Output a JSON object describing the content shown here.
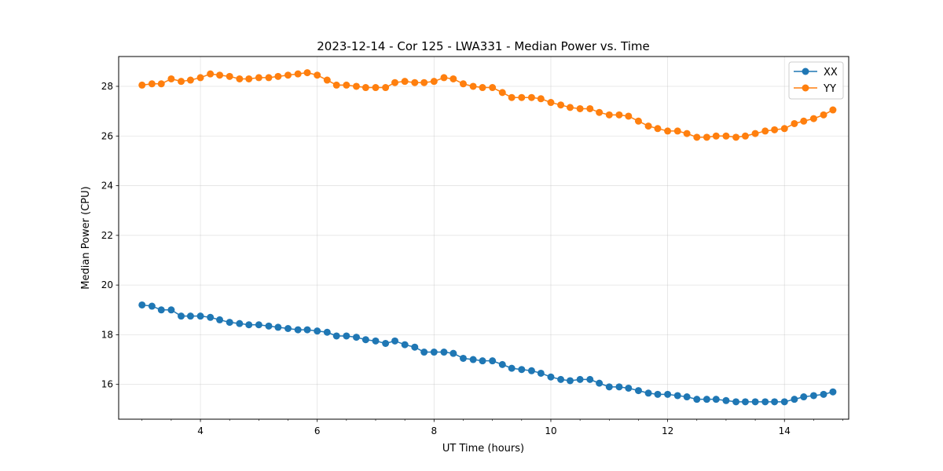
{
  "chart_data": {
    "type": "line",
    "title": "2023-12-14 - Cor 125 - LWA331 - Median Power vs. Time",
    "xlabel": "UT Time (hours)",
    "ylabel": "Median Power (CPU)",
    "xlim": [
      2.6,
      15.1
    ],
    "ylim": [
      14.6,
      29.2
    ],
    "xticks": [
      4,
      6,
      8,
      10,
      12,
      14
    ],
    "xtick_labels": [
      "4",
      "6",
      "8",
      "10",
      "12",
      "14"
    ],
    "yticks": [
      16,
      18,
      20,
      22,
      24,
      26,
      28
    ],
    "ytick_labels": [
      "16",
      "18",
      "20",
      "22",
      "24",
      "26",
      "28"
    ],
    "grid": true,
    "legend_position": "top-right",
    "x": [
      3.0,
      3.17,
      3.33,
      3.5,
      3.67,
      3.83,
      4.0,
      4.17,
      4.33,
      4.5,
      4.67,
      4.83,
      5.0,
      5.17,
      5.33,
      5.5,
      5.67,
      5.83,
      6.0,
      6.17,
      6.33,
      6.5,
      6.67,
      6.83,
      7.0,
      7.17,
      7.33,
      7.5,
      7.67,
      7.83,
      8.0,
      8.17,
      8.33,
      8.5,
      8.67,
      8.83,
      9.0,
      9.17,
      9.33,
      9.5,
      9.67,
      9.83,
      10.0,
      10.17,
      10.33,
      10.5,
      10.67,
      10.83,
      11.0,
      11.17,
      11.33,
      11.5,
      11.67,
      11.83,
      12.0,
      12.17,
      12.33,
      12.5,
      12.67,
      12.83,
      13.0,
      13.17,
      13.33,
      13.5,
      13.67,
      13.83,
      14.0,
      14.17,
      14.33,
      14.5,
      14.67,
      14.83
    ],
    "series": [
      {
        "name": "XX",
        "color": "#1f77b4",
        "values": [
          19.2,
          19.15,
          19.0,
          19.0,
          18.75,
          18.75,
          18.75,
          18.7,
          18.6,
          18.5,
          18.45,
          18.4,
          18.4,
          18.35,
          18.3,
          18.25,
          18.2,
          18.2,
          18.15,
          18.1,
          17.95,
          17.95,
          17.9,
          17.8,
          17.75,
          17.65,
          17.75,
          17.6,
          17.5,
          17.3,
          17.3,
          17.3,
          17.25,
          17.05,
          17.0,
          16.95,
          16.95,
          16.8,
          16.65,
          16.6,
          16.55,
          16.45,
          16.3,
          16.2,
          16.15,
          16.2,
          16.2,
          16.05,
          15.9,
          15.9,
          15.85,
          15.75,
          15.65,
          15.6,
          15.6,
          15.55,
          15.5,
          15.4,
          15.4,
          15.4,
          15.35,
          15.3,
          15.3,
          15.3,
          15.3,
          15.3,
          15.3,
          15.4,
          15.5,
          15.55,
          15.6,
          15.7
        ]
      },
      {
        "name": "YY",
        "color": "#ff7f0e",
        "values": [
          28.05,
          28.1,
          28.1,
          28.3,
          28.2,
          28.25,
          28.35,
          28.5,
          28.45,
          28.4,
          28.3,
          28.3,
          28.35,
          28.35,
          28.4,
          28.45,
          28.5,
          28.55,
          28.45,
          28.25,
          28.05,
          28.05,
          28.0,
          27.95,
          27.95,
          27.95,
          28.15,
          28.2,
          28.15,
          28.15,
          28.2,
          28.35,
          28.3,
          28.1,
          28.0,
          27.95,
          27.95,
          27.75,
          27.55,
          27.55,
          27.55,
          27.5,
          27.35,
          27.25,
          27.15,
          27.1,
          27.1,
          26.95,
          26.85,
          26.85,
          26.8,
          26.6,
          26.4,
          26.3,
          26.2,
          26.2,
          26.1,
          25.95,
          25.95,
          26.0,
          26.0,
          25.95,
          26.0,
          26.1,
          26.2,
          26.25,
          26.3,
          26.5,
          26.6,
          26.7,
          26.85,
          27.05
        ]
      }
    ]
  }
}
